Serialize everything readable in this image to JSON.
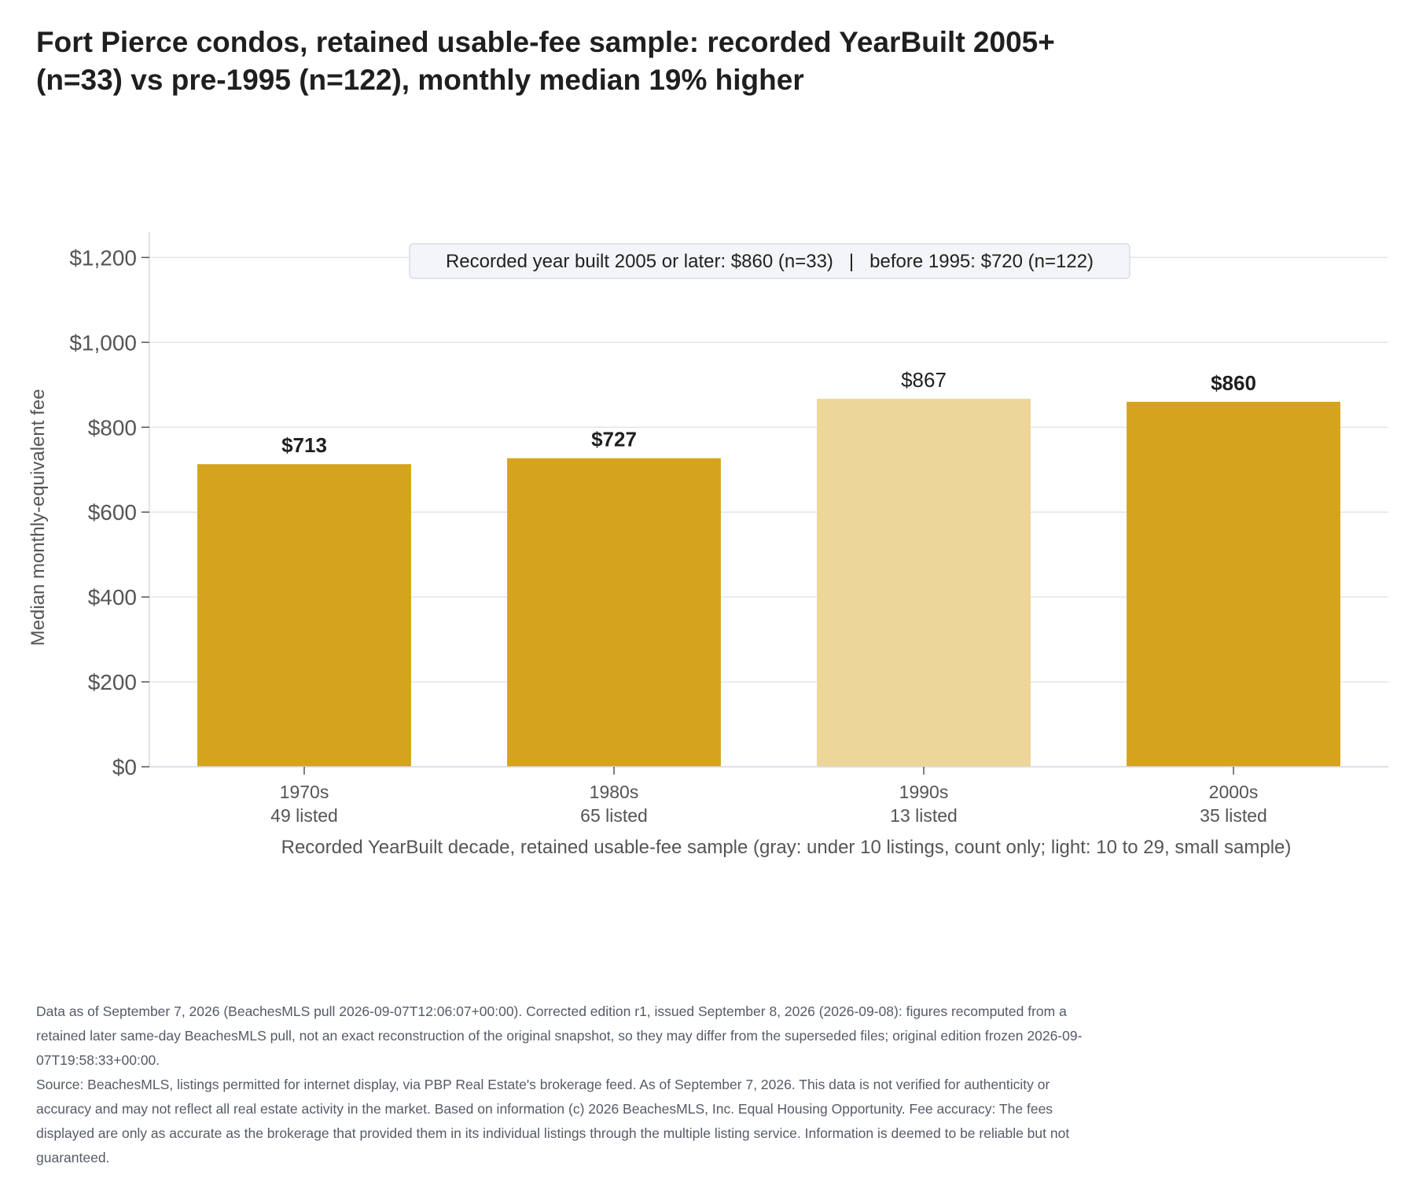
{
  "chart_data": {
    "type": "bar",
    "title": "Fort Pierce condos, retained usable-fee sample: recorded YearBuilt 2005+ (n=33) vs pre-1995 (n=122), monthly median 19% higher",
    "categories": [
      "1970s",
      "1980s",
      "1990s",
      "2000s"
    ],
    "category_sublabels": [
      "49 listed",
      "65 listed",
      "13 listed",
      "35 listed"
    ],
    "values": [
      713,
      727,
      867,
      860
    ],
    "value_labels": [
      "$713",
      "$727",
      "$867",
      "$860"
    ],
    "small_sample": [
      false,
      false,
      true,
      false
    ],
    "xlabel": "Recorded YearBuilt decade, retained usable-fee sample (gray: under 10 listings, count only; light: 10 to 29, small sample)",
    "ylabel": "Median monthly-equivalent fee",
    "ylim": [
      0,
      1260
    ],
    "yticks": [
      0,
      200,
      400,
      600,
      800,
      1000,
      1200
    ],
    "ytick_labels": [
      "$0",
      "$200",
      "$400",
      "$600",
      "$800",
      "$1,000",
      "$1,200"
    ],
    "annotation": "Recorded year built 2005 or later: $860 (n=33)   |   before 1995: $720 (n=122)",
    "grid": true,
    "colors": {
      "bar": "#d6a31e",
      "bar_light": "#edd699",
      "grid": "#e3e4ea"
    }
  },
  "footer": {
    "note": "Data as of September 7, 2026 (BeachesMLS pull 2026-09-07T12:06:07+00:00). Corrected edition r1, issued September 8, 2026 (2026-09-08): figures recomputed from a retained later same-day BeachesMLS pull, not an exact reconstruction of the original snapshot, so they may differ from the superseded files; original edition frozen 2026-09-07T19:58:33+00:00.",
    "source": "Source: BeachesMLS, listings permitted for internet display, via PBP Real Estate's brokerage feed. As of September 7, 2026. This data is not verified for authenticity or accuracy and may not reflect all real estate activity in the market. Based on information (c) 2026 BeachesMLS, Inc. Equal Housing Opportunity. Fee accuracy: The fees displayed are only as accurate as the brokerage that provided them in its individual listings through the multiple listing service. Information is deemed to be reliable but not guaranteed."
  }
}
